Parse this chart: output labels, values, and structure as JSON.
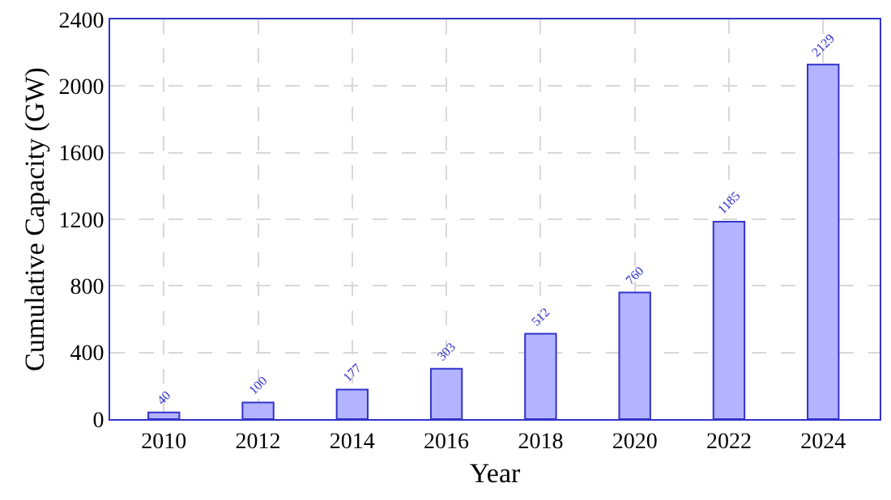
{
  "chart_data": {
    "type": "bar",
    "xlabel": "Year",
    "ylabel": "Cumulative Capacity (GW)",
    "categories": [
      "2010",
      "2012",
      "2014",
      "2016",
      "2018",
      "2020",
      "2022",
      "2024"
    ],
    "series": [
      {
        "color": "#b3b3ff",
        "values": [
          40,
          100,
          177,
          303,
          512,
          760,
          1185,
          2129
        ]
      }
    ],
    "ylim": [
      0,
      2400
    ],
    "yticks": [
      0,
      400,
      800,
      1200,
      1600,
      2000,
      2400
    ],
    "grid": true,
    "data_labels": true
  }
}
